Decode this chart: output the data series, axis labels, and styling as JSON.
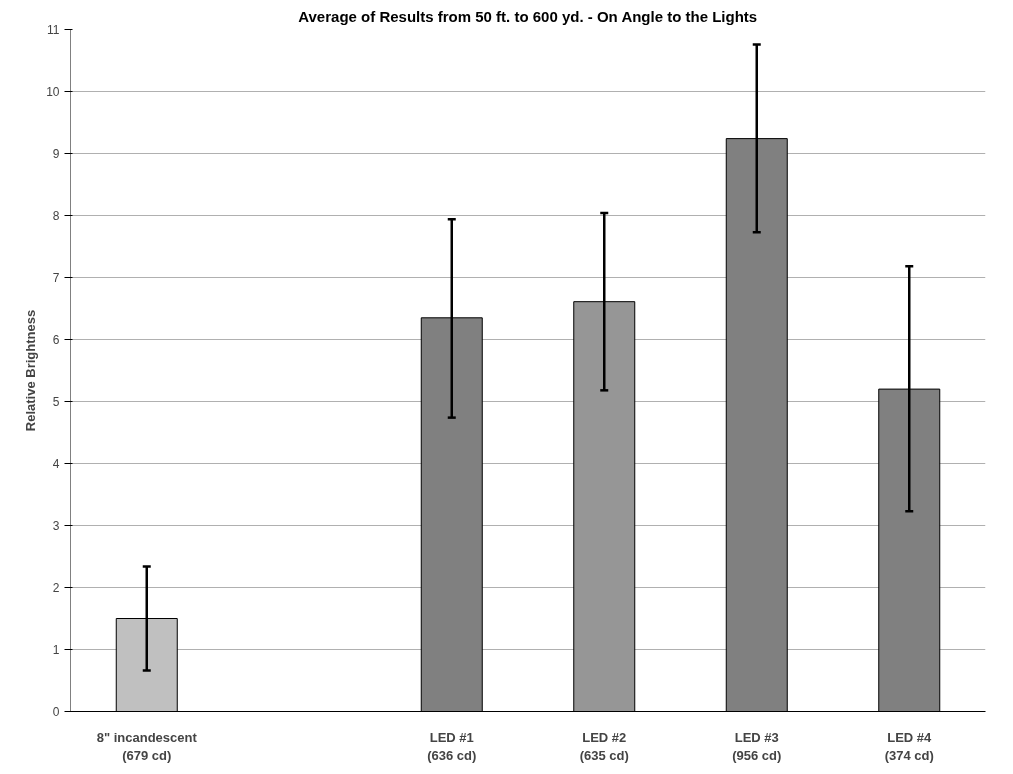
{
  "chart_data": {
    "type": "bar",
    "title": "Average of Results from 50 ft. to 600 yd. - On Angle to the Lights",
    "ylabel": "Relative Brightness",
    "categories": [
      "8\" incandescent\n(679 cd)",
      null,
      "LED #1\n(636 cd)",
      "LED #2\n(635 cd)",
      "LED #3\n(956 cd)",
      "LED #4\n(374 cd)"
    ],
    "values": [
      1.5,
      null,
      6.35,
      6.61,
      9.24,
      5.2
    ],
    "colors": [
      "#c0c0c0",
      null,
      "#808080",
      "#969696",
      "#808080",
      "#808080"
    ],
    "errors": [
      [
        0.66,
        2.34
      ],
      null,
      [
        4.74,
        7.94
      ],
      [
        5.18,
        8.04
      ],
      [
        7.73,
        10.76
      ],
      [
        3.23,
        7.18
      ]
    ],
    "ylim": [
      0,
      11
    ],
    "yticks": [
      0,
      1,
      2,
      3,
      4,
      5,
      6,
      7,
      8,
      9,
      10,
      11
    ],
    "grid": "y"
  }
}
